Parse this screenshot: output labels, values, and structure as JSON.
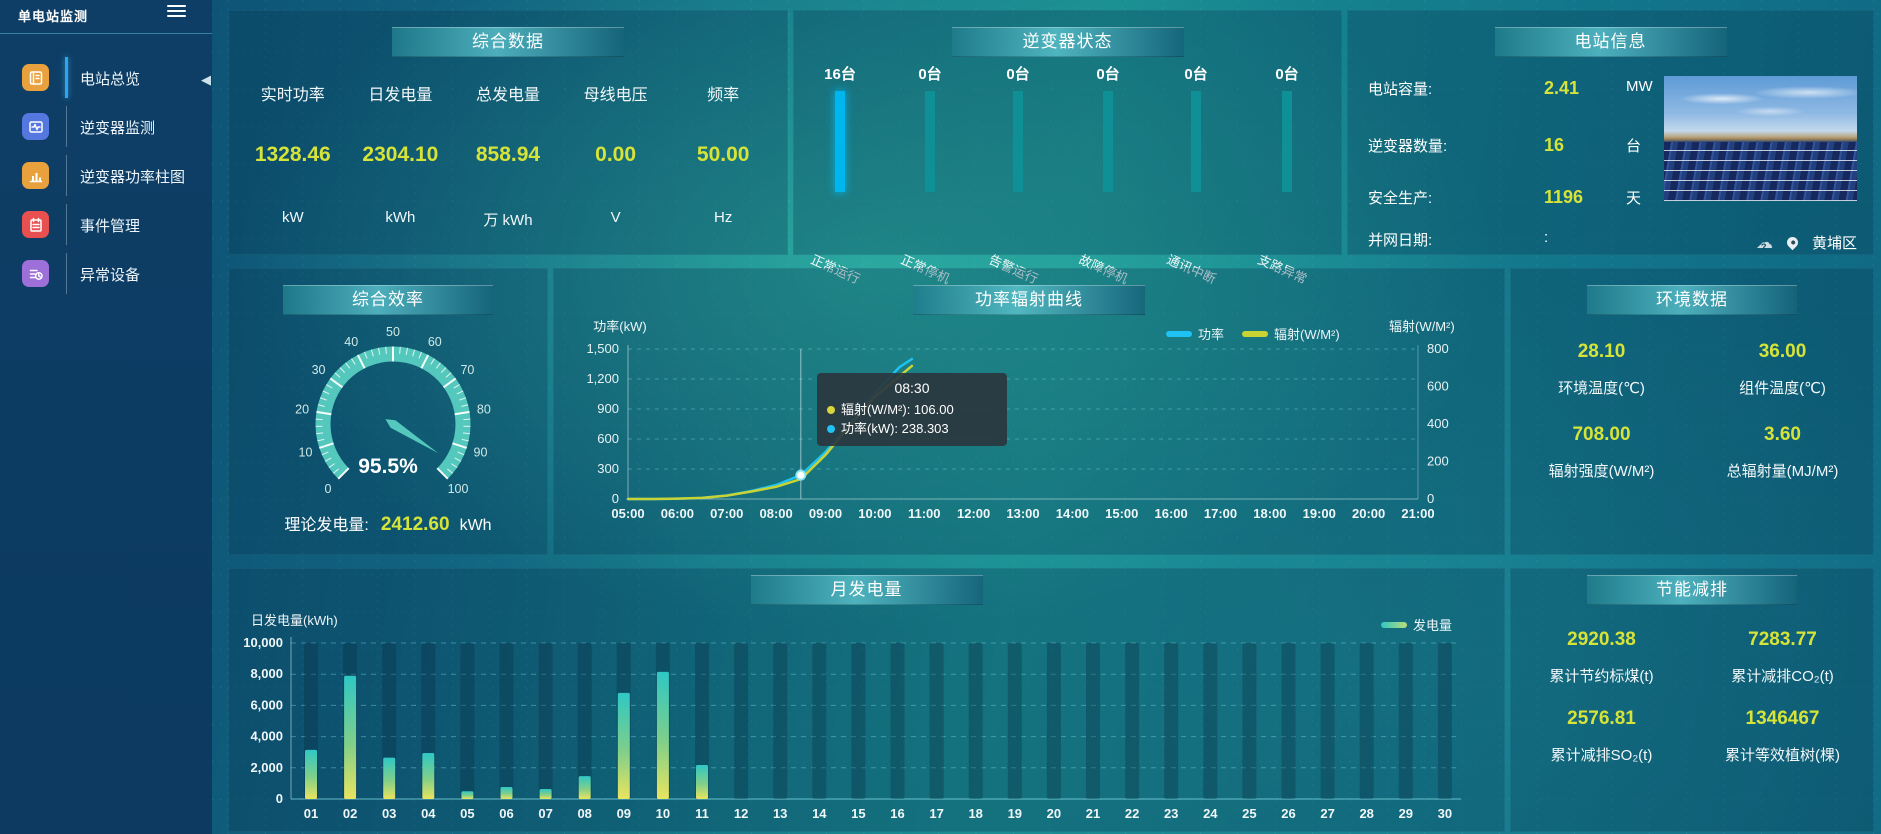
{
  "app_title": "单电站监测",
  "sidebar": {
    "items": [
      {
        "label": "电站总览",
        "icon": "overview-icon",
        "active": true
      },
      {
        "label": "逆变器监测",
        "icon": "inverter-monitor-icon",
        "active": false
      },
      {
        "label": "逆变器功率柱图",
        "icon": "inverter-power-bars-icon",
        "active": false
      },
      {
        "label": "事件管理",
        "icon": "event-management-icon",
        "active": false
      },
      {
        "label": "异常设备",
        "icon": "abnormal-device-icon",
        "active": false
      }
    ]
  },
  "panels": {
    "summary": {
      "title": "综合数据",
      "metrics": [
        {
          "label": "实时功率",
          "value": "1328.46",
          "unit": "kW"
        },
        {
          "label": "日发电量",
          "value": "2304.10",
          "unit": "kWh"
        },
        {
          "label": "总发电量",
          "value": "858.94",
          "unit": "万 kWh"
        },
        {
          "label": "母线电压",
          "value": "0.00",
          "unit": "V"
        },
        {
          "label": "频率",
          "value": "50.00",
          "unit": "Hz"
        }
      ]
    },
    "inverter_status": {
      "title": "逆变器状态",
      "bars": [
        {
          "count": "16台",
          "label": "正常运行",
          "active": true
        },
        {
          "count": "0台",
          "label": "正常停机",
          "active": false
        },
        {
          "count": "0台",
          "label": "告警运行",
          "active": false
        },
        {
          "count": "0台",
          "label": "故障停机",
          "active": false
        },
        {
          "count": "0台",
          "label": "通讯中断",
          "active": false
        },
        {
          "count": "0台",
          "label": "支路异常",
          "active": false
        }
      ]
    },
    "station_info": {
      "title": "电站信息",
      "rows": [
        {
          "label": "电站容量:",
          "value": "2.41",
          "unit": "MW",
          "plain": false
        },
        {
          "label": "逆变器数量:",
          "value": "16",
          "unit": "台",
          "plain": false
        },
        {
          "label": "安全生产:",
          "value": "1196",
          "unit": "天",
          "plain": false
        },
        {
          "label": "并网日期:",
          "value": ":",
          "unit": "",
          "plain": true
        }
      ],
      "location": "黄埔区"
    },
    "efficiency": {
      "title": "综合效率",
      "value_label": "95.5%",
      "theory_label": "理论发电量:",
      "theory_value": "2412.60",
      "theory_unit": "kWh"
    },
    "power_curve": {
      "title": "功率辐射曲线",
      "tooltip": {
        "title": "08:30",
        "rows": [
          {
            "color": "#d9d53c",
            "label": "辐射(W/M²)",
            "value": "106.00"
          },
          {
            "color": "#1ec2f3",
            "label": "功率(kW)",
            "value": "238.303"
          }
        ]
      }
    },
    "environment": {
      "title": "环境数据",
      "stats": [
        {
          "value": "28.10",
          "label": "环境温度(℃)"
        },
        {
          "value": "36.00",
          "label": "组件温度(℃)"
        },
        {
          "value": "708.00",
          "label": "辐射强度(W/M²)"
        },
        {
          "value": "3.60",
          "label": "总辐射量(MJ/M²)"
        }
      ]
    },
    "monthly": {
      "title": "月发电量"
    },
    "energy_saving": {
      "title": "节能减排",
      "stats": [
        {
          "value": "2920.38",
          "label": "累计节约标煤(t)"
        },
        {
          "value": "7283.77",
          "label": "累计减排CO₂(t)"
        },
        {
          "value": "2576.81",
          "label": "累计减排SO₂(t)"
        },
        {
          "value": "1346467",
          "label": "累计等效植树(棵)"
        }
      ]
    }
  },
  "colors": {
    "accent_value": "#d6e338",
    "power_line": "#1ec2f3",
    "radiation_line": "#c9d434",
    "gauge": "#54c8bc",
    "active_bar": "#00b6ef",
    "inactive_bar": "#0f8f96",
    "bar_gradient": [
      "#2fc7c4",
      "#7fcf8a",
      "#e9e45f"
    ]
  },
  "chart_data": [
    {
      "id": "power_radiation_curve",
      "type": "line",
      "title": "功率辐射曲线",
      "x_ticks": [
        "05:00",
        "06:00",
        "07:00",
        "08:00",
        "09:00",
        "10:00",
        "11:00",
        "12:00",
        "13:00",
        "14:00",
        "15:00",
        "16:00",
        "17:00",
        "18:00",
        "19:00",
        "20:00",
        "21:00"
      ],
      "x_range": [
        5,
        21
      ],
      "left_axis": {
        "title": "功率(kW)",
        "min": 0,
        "max": 1500,
        "ticks": [
          0,
          300,
          600,
          900,
          1200,
          1500
        ]
      },
      "right_axis": {
        "title": "辐射(W/M²)",
        "min": 0,
        "max": 800,
        "ticks": [
          0,
          200,
          400,
          600,
          800
        ]
      },
      "grid": "horizontal-dashed",
      "legend_position": "top-right",
      "series": [
        {
          "name": "功率",
          "axis": "left",
          "color": "#1ec2f3",
          "points": [
            [
              5,
              0
            ],
            [
              5.5,
              0
            ],
            [
              6,
              3
            ],
            [
              6.5,
              10
            ],
            [
              7,
              35
            ],
            [
              7.5,
              80
            ],
            [
              8,
              140
            ],
            [
              8.5,
              238.3
            ],
            [
              9,
              470
            ],
            [
              9.5,
              760
            ],
            [
              10,
              1060
            ],
            [
              10.5,
              1320
            ],
            [
              10.75,
              1400
            ]
          ]
        },
        {
          "name": "辐射(W/M²)",
          "axis": "right",
          "color": "#c9d434",
          "points": [
            [
              5,
              0
            ],
            [
              5.5,
              0
            ],
            [
              6,
              2
            ],
            [
              6.5,
              6
            ],
            [
              7,
              18
            ],
            [
              7.5,
              40
            ],
            [
              8,
              65
            ],
            [
              8.5,
              106
            ],
            [
              9,
              235
            ],
            [
              9.5,
              395
            ],
            [
              10,
              545
            ],
            [
              10.75,
              710
            ]
          ]
        }
      ],
      "hover_x": 8.5
    },
    {
      "id": "monthly_generation",
      "type": "bar",
      "title": "月发电量",
      "ylabel": "日发电量(kWh)",
      "legend": [
        "发电量"
      ],
      "ylim": [
        0,
        10000
      ],
      "yticks": [
        0,
        2000,
        4000,
        6000,
        8000,
        10000
      ],
      "categories": [
        "01",
        "02",
        "03",
        "04",
        "05",
        "06",
        "07",
        "08",
        "09",
        "10",
        "11",
        "12",
        "13",
        "14",
        "15",
        "16",
        "17",
        "18",
        "19",
        "20",
        "21",
        "22",
        "23",
        "24",
        "25",
        "26",
        "27",
        "28",
        "29",
        "30"
      ],
      "values": [
        3150,
        7900,
        2650,
        2950,
        500,
        770,
        640,
        1470,
        6800,
        8150,
        2180,
        0,
        0,
        0,
        0,
        0,
        0,
        0,
        0,
        0,
        0,
        0,
        0,
        0,
        0,
        0,
        0,
        0,
        0,
        0
      ]
    },
    {
      "id": "efficiency_gauge",
      "type": "gauge",
      "min": 0,
      "max": 100,
      "value": 95.5,
      "label": "95.5%",
      "tick_step": 10
    },
    {
      "id": "inverter_status_bars",
      "type": "bar",
      "categories": [
        "正常运行",
        "正常停机",
        "告警运行",
        "故障停机",
        "通讯中断",
        "支路异常"
      ],
      "values": [
        16,
        0,
        0,
        0,
        0,
        0
      ]
    }
  ]
}
